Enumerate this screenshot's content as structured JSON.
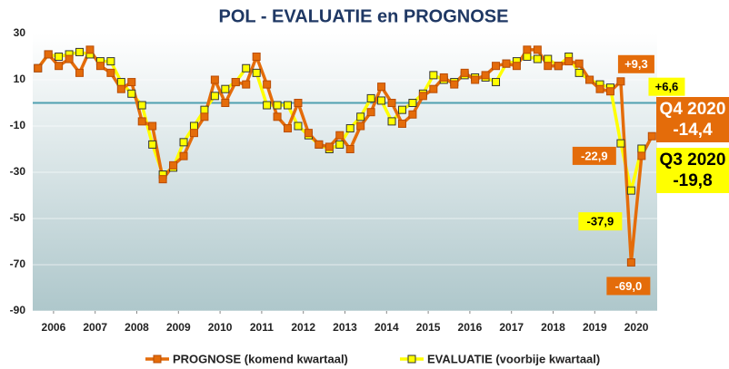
{
  "chart_data": {
    "type": "line",
    "title": "POL - EVALUATIE en PROGNOSE",
    "x": [
      2006.125,
      2006.375,
      2006.625,
      2006.875,
      2007.125,
      2007.375,
      2007.625,
      2007.875,
      2008.125,
      2008.375,
      2008.625,
      2008.875,
      2009.125,
      2009.375,
      2009.625,
      2009.875,
      2010.125,
      2010.375,
      2010.625,
      2010.875,
      2011.125,
      2011.375,
      2011.625,
      2011.875,
      2012.125,
      2012.375,
      2012.625,
      2012.875,
      2013.125,
      2013.375,
      2013.625,
      2013.875,
      2014.125,
      2014.375,
      2014.625,
      2014.875,
      2015.125,
      2015.375,
      2015.625,
      2015.875,
      2016.125,
      2016.375,
      2016.625,
      2016.875,
      2017.125,
      2017.375,
      2017.625,
      2017.875,
      2018.125,
      2018.375,
      2018.625,
      2018.875,
      2019.125,
      2019.375,
      2019.625,
      2019.875,
      2020.125,
      2020.375,
      2020.625,
      2020.875
    ],
    "series": [
      {
        "name": "PROGNOSE (komend kwartaal)",
        "color": "#e46c0a",
        "values": [
          15,
          21,
          16,
          19,
          13,
          23,
          16,
          13,
          6,
          9,
          -8,
          -10,
          -33,
          -27,
          -23,
          -13,
          -6,
          10,
          0,
          9,
          8,
          20,
          8,
          -6,
          -11,
          0,
          -13,
          -18,
          -19,
          -14,
          -20,
          -10,
          -4,
          7,
          0,
          -9,
          -5,
          3,
          6,
          11,
          8,
          13,
          10,
          12,
          16,
          17,
          16,
          23,
          23,
          16,
          16,
          18,
          17,
          10,
          6,
          5,
          9.3,
          -69,
          -22.9,
          -14.4
        ],
        "value_labels": [
          null,
          null,
          null,
          null,
          null,
          null,
          null,
          null,
          null,
          null,
          null,
          null,
          null,
          null,
          null,
          null,
          null,
          null,
          null,
          null,
          null,
          null,
          null,
          null,
          null,
          null,
          null,
          null,
          null,
          null,
          null,
          null,
          null,
          null,
          null,
          null,
          null,
          null,
          null,
          null,
          null,
          null,
          null,
          null,
          null,
          null,
          null,
          null,
          null,
          null,
          null,
          null,
          null,
          null,
          null,
          null,
          "+9,3",
          "-69,0",
          "-22,9",
          "-14,4"
        ]
      },
      {
        "name": "EVALUATIE (voorbije kwartaal)",
        "color": "#ffff00",
        "values": [
          15,
          21,
          20,
          21,
          22,
          21,
          18,
          18,
          9,
          4,
          -1,
          -18,
          -31,
          -28,
          -17,
          -10,
          -3,
          3,
          6,
          9,
          15,
          13,
          -1,
          -1,
          -1,
          -10,
          -14,
          -18,
          -20,
          -18,
          -11,
          -6,
          2,
          1,
          -8,
          -3,
          0,
          4,
          12,
          10,
          9,
          12,
          11,
          11,
          9,
          17,
          18,
          20,
          19,
          19,
          16,
          20,
          13,
          10,
          8,
          6.6,
          -17.5,
          -37.9,
          -19.8,
          null
        ],
        "value_labels": [
          null,
          null,
          null,
          null,
          null,
          null,
          null,
          null,
          null,
          null,
          null,
          null,
          null,
          null,
          null,
          null,
          null,
          null,
          null,
          null,
          null,
          null,
          null,
          null,
          null,
          null,
          null,
          null,
          null,
          null,
          null,
          null,
          null,
          null,
          null,
          null,
          null,
          null,
          null,
          null,
          null,
          null,
          null,
          null,
          null,
          null,
          null,
          null,
          null,
          null,
          null,
          null,
          null,
          null,
          null,
          "+6,6",
          null,
          "-37,9",
          "-19,8",
          null
        ]
      }
    ],
    "annotations": [
      "Q4 2020",
      "Q3 2020"
    ],
    "xlim": [
      2006,
      2021
    ],
    "xticks": [
      {
        "value": 2006.5,
        "label": "2006"
      },
      {
        "value": 2007.5,
        "label": "2007"
      },
      {
        "value": 2008.5,
        "label": "2008"
      },
      {
        "value": 2009.5,
        "label": "2009"
      },
      {
        "value": 2010.5,
        "label": "2010"
      },
      {
        "value": 2011.5,
        "label": "2011"
      },
      {
        "value": 2012.5,
        "label": "2012"
      },
      {
        "value": 2013.5,
        "label": "2013"
      },
      {
        "value": 2014.5,
        "label": "2014"
      },
      {
        "value": 2015.5,
        "label": "2015"
      },
      {
        "value": 2016.5,
        "label": "2016"
      },
      {
        "value": 2017.5,
        "label": "2017"
      },
      {
        "value": 2018.5,
        "label": "2018"
      },
      {
        "value": 2019.5,
        "label": "2019"
      },
      {
        "value": 2020.5,
        "label": "2020"
      }
    ],
    "ylim": [
      -90,
      30
    ],
    "yticks": [
      30,
      10,
      -10,
      -30,
      -50,
      -70,
      -90
    ],
    "zero_line_color": "#4f9fb0",
    "grid": true
  }
}
